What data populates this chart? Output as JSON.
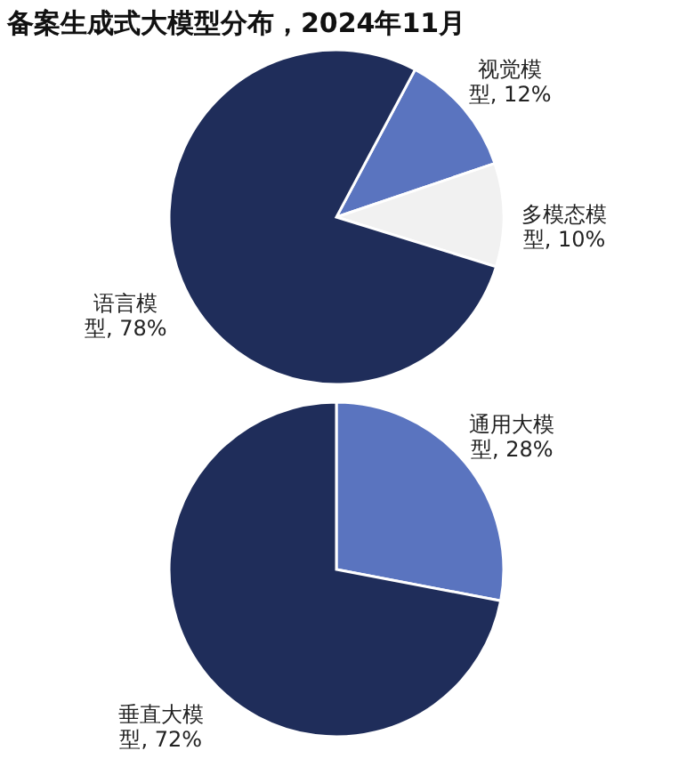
{
  "chart_data": [
    {
      "type": "pie",
      "title": "备案生成式大模型分布，2024年11月",
      "categories": [
        "视觉模型",
        "多模态模型",
        "语言模型"
      ],
      "values": [
        12,
        10,
        78
      ],
      "value_labels": [
        "12%",
        "10%",
        "78%"
      ],
      "colors": [
        "#5a74bf",
        "#f1f1f1",
        "#1f2d5a"
      ],
      "legend": false
    },
    {
      "type": "pie",
      "categories": [
        "通用大模型",
        "垂直大模型"
      ],
      "values": [
        28,
        72
      ],
      "value_labels": [
        "28%",
        "72%"
      ],
      "colors": [
        "#5a74bf",
        "#1f2d5a"
      ],
      "legend": false
    }
  ]
}
